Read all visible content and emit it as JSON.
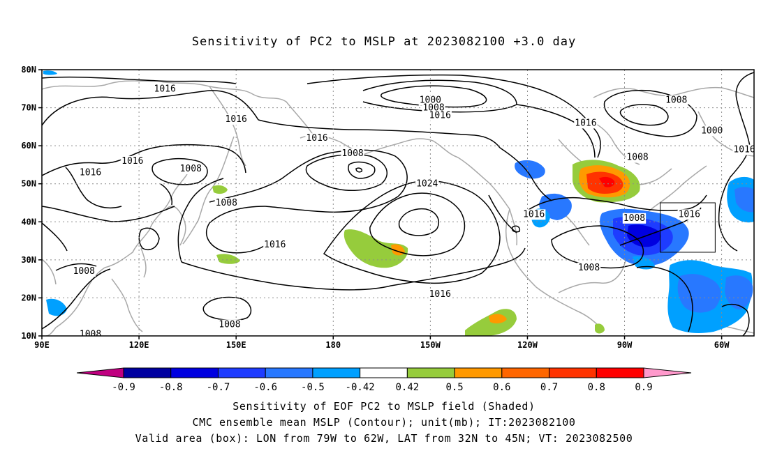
{
  "title": "Sensitivity of PC2 to MSLP at 2023082100 +3.0 day",
  "map": {
    "projection": "cylindrical",
    "lon_range": [
      90,
      310
    ],
    "lat_range": [
      10,
      80
    ],
    "lon_ticks": [
      "90E",
      "120E",
      "150E",
      "180",
      "150W",
      "120W",
      "90W",
      "60W"
    ],
    "lat_ticks": [
      "10N",
      "20N",
      "30N",
      "40N",
      "50N",
      "60N",
      "70N",
      "80N"
    ],
    "gridlines": true,
    "contour_labels": [
      {
        "text": "1016",
        "lon": 128,
        "lat": 75
      },
      {
        "text": "1016",
        "lon": 150,
        "lat": 67
      },
      {
        "text": "1016",
        "lon": 118,
        "lat": 56
      },
      {
        "text": "1016",
        "lon": 105,
        "lat": 53
      },
      {
        "text": "1008",
        "lon": 136,
        "lat": 54
      },
      {
        "text": "1008",
        "lon": 147,
        "lat": 45
      },
      {
        "text": "1008",
        "lon": 186,
        "lat": 58
      },
      {
        "text": "1016",
        "lon": 175,
        "lat": 62
      },
      {
        "text": "1016",
        "lon": 162,
        "lat": 34
      },
      {
        "text": "1008",
        "lon": 103,
        "lat": 27
      },
      {
        "text": "1008",
        "lon": 105,
        "lat": 10.5
      },
      {
        "text": "1008",
        "lon": 148,
        "lat": 13
      },
      {
        "text": "1000",
        "lon": 210,
        "lat": 72
      },
      {
        "text": "1008",
        "lon": 211,
        "lat": 70
      },
      {
        "text": "1016",
        "lon": 213,
        "lat": 68
      },
      {
        "text": "1024",
        "lon": 209,
        "lat": 50
      },
      {
        "text": "1016",
        "lon": 213,
        "lat": 21
      },
      {
        "text": "1016",
        "lon": 242,
        "lat": 42
      },
      {
        "text": "1016",
        "lon": 258,
        "lat": 66
      },
      {
        "text": "1008",
        "lon": 286,
        "lat": 72
      },
      {
        "text": "1000",
        "lon": 297,
        "lat": 64
      },
      {
        "text": "1008",
        "lon": 274,
        "lat": 57
      },
      {
        "text": "1008",
        "lon": 273,
        "lat": 41
      },
      {
        "text": "1016",
        "lon": 290,
        "lat": 42
      },
      {
        "text": "1008",
        "lon": 259,
        "lat": 28
      },
      {
        "text": "1016",
        "lon": 307,
        "lat": 59
      }
    ],
    "box": {
      "lon": [
        -79,
        -62
      ],
      "lat": [
        32,
        45
      ]
    }
  },
  "colorbar": {
    "ticks": [
      "-0.9",
      "-0.8",
      "-0.7",
      "-0.6",
      "-0.5",
      "-0.42",
      "0.42",
      "0.5",
      "0.6",
      "0.7",
      "0.8",
      "0.9"
    ],
    "colors": [
      "#0000a0",
      "#0000e0",
      "#1e3cff",
      "#2878ff",
      "#00a0ff",
      "#ffffff",
      "#96cc3c",
      "#ff9900",
      "#ff6600",
      "#ff3300",
      "#ff0000"
    ],
    "below_color": "#c00080",
    "above_color": "#ff99cc"
  },
  "footer": {
    "line1": "Sensitivity of EOF PC2 to MSLP field (Shaded)",
    "line2": "CMC ensemble mean MSLP (Contour); unit(mb); IT:2023082100",
    "line3": "Valid area (box): LON from 79W to 62W, LAT from 32N to 45N; VT: 2023082500"
  }
}
